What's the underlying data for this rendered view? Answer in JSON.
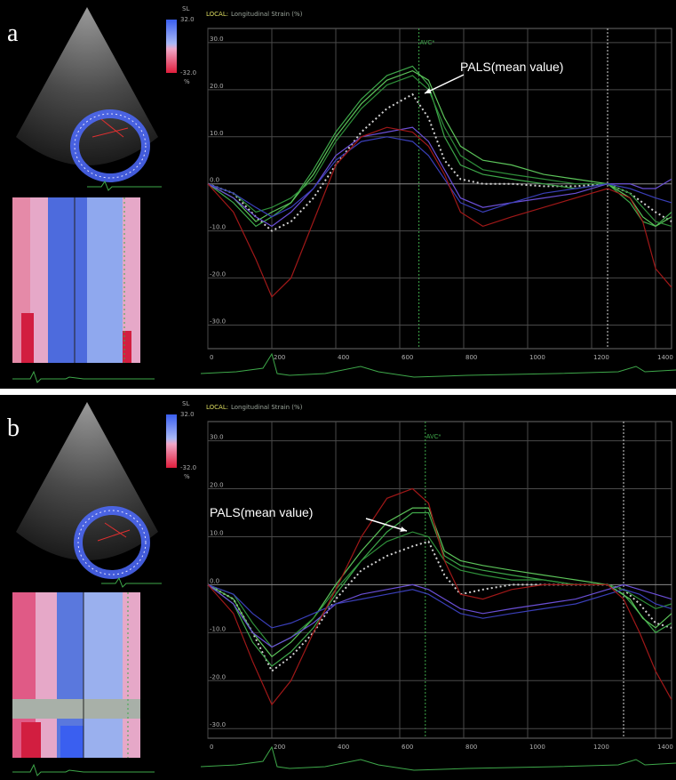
{
  "panels": [
    {
      "id": "a",
      "letter": "a",
      "header_local": "LOCAL:",
      "header_title": "Longitudinal Strain (%)",
      "avc_label": "AVC*",
      "annotation": "PALS(mean value)",
      "scale_top": "32.0",
      "scale_bottom": "-32.0",
      "scale_unit": "%",
      "scale_code": "SL",
      "chart_data": {
        "type": "line",
        "title": "",
        "ylabel": "Longitudinal Strain (%)",
        "xlabel": "",
        "xlim": [
          0,
          1450
        ],
        "ylim": [
          -35,
          33
        ],
        "x_ticks": [
          0,
          200,
          400,
          600,
          800,
          1000,
          1200,
          1400
        ],
        "y_ticks": [
          30,
          20,
          10,
          0,
          -10,
          -20,
          -30
        ],
        "y_tick_labels": [
          "30.0",
          "20.0",
          "10.0",
          "0.0",
          "-10.0",
          "-20.0",
          "-30.0"
        ],
        "avc_time": 660,
        "cycle_markers": [
          660,
          1250
        ],
        "grid": true,
        "series": [
          {
            "color": "#d0d0d0",
            "dashed": true,
            "x": [
              0,
              80,
              150,
              200,
              260,
              330,
              400,
              480,
              560,
              640,
              690,
              740,
              790,
              860,
              950,
              1050,
              1150,
              1250,
              1320,
              1360,
              1400,
              1450
            ],
            "y": [
              0,
              -2,
              -7,
              -10,
              -8,
              -3,
              4,
              11,
              16,
              19,
              14,
              5,
              1,
              0,
              0,
              -0.5,
              -0.5,
              0,
              -2,
              -4,
              -6,
              -8
            ]
          },
          {
            "color": "#3ea84a",
            "dashed": false,
            "x": [
              0,
              80,
              150,
              200,
              260,
              330,
              400,
              480,
              560,
              640,
              690,
              740,
              790,
              860,
              950,
              1050,
              1150,
              1250,
              1320,
              1360,
              1400,
              1450
            ],
            "y": [
              0,
              -4,
              -9,
              -7,
              -4,
              3,
              11,
              18,
              23,
              25,
              21,
              10,
              4,
              2,
              1,
              0,
              -1,
              0,
              -4,
              -8,
              -9,
              -6
            ]
          },
          {
            "color": "#5cc45a",
            "dashed": false,
            "x": [
              0,
              80,
              150,
              200,
              260,
              330,
              400,
              480,
              560,
              640,
              690,
              740,
              790,
              860,
              950,
              1050,
              1150,
              1250,
              1320,
              1360,
              1400,
              1450
            ],
            "y": [
              0,
              -3,
              -8,
              -6,
              -4,
              2,
              10,
              17,
              22,
              24,
              22,
              14,
              8,
              5,
              4,
              2,
              1,
              0,
              -3,
              -7,
              -9,
              -7
            ]
          },
          {
            "color": "#2f8f3a",
            "dashed": false,
            "x": [
              0,
              80,
              150,
              200,
              260,
              330,
              400,
              480,
              560,
              640,
              690,
              740,
              790,
              860,
              950,
              1050,
              1150,
              1250,
              1320,
              1360,
              1400,
              1450
            ],
            "y": [
              0,
              -2,
              -6,
              -5,
              -3,
              1,
              9,
              16,
              21,
              23,
              20,
              12,
              6,
              3,
              2,
              1,
              0,
              0,
              -2,
              -5,
              -8,
              -9
            ]
          },
          {
            "color": "#6a4fd6",
            "dashed": false,
            "x": [
              0,
              80,
              150,
              200,
              260,
              330,
              400,
              480,
              560,
              640,
              690,
              740,
              790,
              860,
              950,
              1050,
              1150,
              1250,
              1320,
              1360,
              1400,
              1450
            ],
            "y": [
              0,
              -3,
              -7,
              -9,
              -6,
              -1,
              6,
              10,
              11,
              12,
              9,
              3,
              -3,
              -5,
              -4,
              -3,
              -2,
              0,
              0,
              -1,
              -1,
              1
            ]
          },
          {
            "color": "#3a3fb8",
            "dashed": false,
            "x": [
              0,
              80,
              150,
              200,
              260,
              330,
              400,
              480,
              560,
              640,
              690,
              740,
              790,
              860,
              950,
              1050,
              1150,
              1250,
              1320,
              1360,
              1400,
              1450
            ],
            "y": [
              0,
              -2,
              -5,
              -7,
              -5,
              -1,
              5,
              9,
              10,
              9,
              6,
              1,
              -4,
              -6,
              -4,
              -2,
              -1,
              0,
              -1,
              -2,
              -3,
              -4
            ]
          },
          {
            "color": "#a01818",
            "dashed": false,
            "x": [
              0,
              80,
              150,
              200,
              260,
              330,
              400,
              480,
              560,
              640,
              690,
              740,
              790,
              860,
              950,
              1050,
              1150,
              1250,
              1320,
              1360,
              1400,
              1450
            ],
            "y": [
              0,
              -6,
              -16,
              -24,
              -20,
              -8,
              4,
              10,
              12,
              11,
              8,
              2,
              -6,
              -9,
              -7,
              -5,
              -3,
              -1,
              -3,
              -8,
              -18,
              -22
            ]
          }
        ]
      }
    },
    {
      "id": "b",
      "letter": "b",
      "header_local": "LOCAL:",
      "header_title": "Longitudinal Strain (%)",
      "avc_label": "AVC*",
      "annotation": "PALS(mean value)",
      "scale_top": "32.0",
      "scale_bottom": "-32.0",
      "scale_unit": "%",
      "scale_code": "SL",
      "chart_data": {
        "type": "line",
        "title": "",
        "ylabel": "Longitudinal Strain (%)",
        "xlabel": "",
        "xlim": [
          0,
          1450
        ],
        "ylim": [
          -32,
          34
        ],
        "x_ticks": [
          0,
          200,
          400,
          600,
          800,
          1000,
          1200,
          1400
        ],
        "y_ticks": [
          30,
          20,
          10,
          0,
          -10,
          -20,
          -30
        ],
        "y_tick_labels": [
          "30.0",
          "20.0",
          "10.0",
          "0.0",
          "-10.0",
          "-20.0",
          "-30.0"
        ],
        "avc_time": 680,
        "cycle_markers": [
          680,
          1300
        ],
        "grid": true,
        "series": [
          {
            "color": "#d0d0d0",
            "dashed": true,
            "x": [
              0,
              80,
              140,
              200,
              260,
              330,
              400,
              480,
              560,
              640,
              690,
              740,
              790,
              860,
              950,
              1050,
              1150,
              1250,
              1300,
              1350,
              1400,
              1450
            ],
            "y": [
              0,
              -3,
              -10,
              -18,
              -15,
              -10,
              -3,
              3,
              6,
              8,
              9,
              2,
              -2,
              -1,
              0,
              0,
              0,
              0,
              -1,
              -4,
              -8,
              -9
            ]
          },
          {
            "color": "#3ea84a",
            "dashed": false,
            "x": [
              0,
              80,
              140,
              200,
              260,
              330,
              400,
              480,
              560,
              640,
              690,
              740,
              790,
              860,
              950,
              1050,
              1150,
              1250,
              1300,
              1350,
              1400,
              1450
            ],
            "y": [
              0,
              -4,
              -12,
              -17,
              -14,
              -9,
              -2,
              5,
              11,
              15,
              15,
              6,
              4,
              3,
              2,
              1,
              0,
              0,
              -2,
              -6,
              -10,
              -8
            ]
          },
          {
            "color": "#5cc45a",
            "dashed": false,
            "x": [
              0,
              80,
              140,
              200,
              260,
              330,
              400,
              480,
              560,
              640,
              690,
              740,
              790,
              860,
              950,
              1050,
              1150,
              1250,
              1320,
              1360,
              1400,
              1450
            ],
            "y": [
              0,
              -3,
              -10,
              -15,
              -12,
              -7,
              0,
              7,
              13,
              16,
              16,
              7,
              5,
              4,
              3,
              2,
              1,
              0,
              -3,
              -7,
              -9,
              -6
            ]
          },
          {
            "color": "#2f8f3a",
            "dashed": false,
            "x": [
              0,
              80,
              140,
              200,
              260,
              330,
              400,
              480,
              560,
              640,
              690,
              740,
              790,
              860,
              950,
              1050,
              1150,
              1250,
              1300,
              1350,
              1400,
              1450
            ],
            "y": [
              0,
              -2,
              -8,
              -13,
              -11,
              -7,
              -1,
              5,
              9,
              11,
              10,
              5,
              3,
              2,
              1,
              1,
              0,
              0,
              -1,
              -3,
              -5,
              -4
            ]
          },
          {
            "color": "#6a4fd6",
            "dashed": false,
            "x": [
              0,
              80,
              140,
              200,
              260,
              330,
              400,
              480,
              560,
              640,
              690,
              740,
              790,
              860,
              950,
              1050,
              1150,
              1250,
              1300,
              1350,
              1400,
              1450
            ],
            "y": [
              0,
              -4,
              -10,
              -13,
              -11,
              -8,
              -4,
              -2,
              -1,
              0,
              -1,
              -3,
              -5,
              -6,
              -5,
              -4,
              -3,
              -1,
              0,
              -1,
              -2,
              -3
            ]
          },
          {
            "color": "#3a3fb8",
            "dashed": false,
            "x": [
              0,
              80,
              140,
              200,
              260,
              330,
              400,
              480,
              560,
              640,
              690,
              740,
              790,
              860,
              950,
              1050,
              1150,
              1250,
              1300,
              1350,
              1400,
              1450
            ],
            "y": [
              0,
              -2,
              -6,
              -9,
              -8,
              -6,
              -4,
              -3,
              -2,
              -1,
              -2,
              -4,
              -6,
              -7,
              -6,
              -5,
              -4,
              -2,
              -1,
              -2,
              -4,
              -5
            ]
          },
          {
            "color": "#a01818",
            "dashed": false,
            "x": [
              0,
              80,
              140,
              200,
              260,
              330,
              400,
              480,
              560,
              640,
              690,
              740,
              790,
              860,
              950,
              1050,
              1150,
              1250,
              1300,
              1350,
              1400,
              1450
            ],
            "y": [
              0,
              -6,
              -16,
              -25,
              -20,
              -10,
              -1,
              10,
              18,
              20,
              17,
              5,
              -2,
              -3,
              -1,
              0,
              0,
              0,
              -3,
              -10,
              -18,
              -24
            ]
          }
        ]
      }
    }
  ]
}
